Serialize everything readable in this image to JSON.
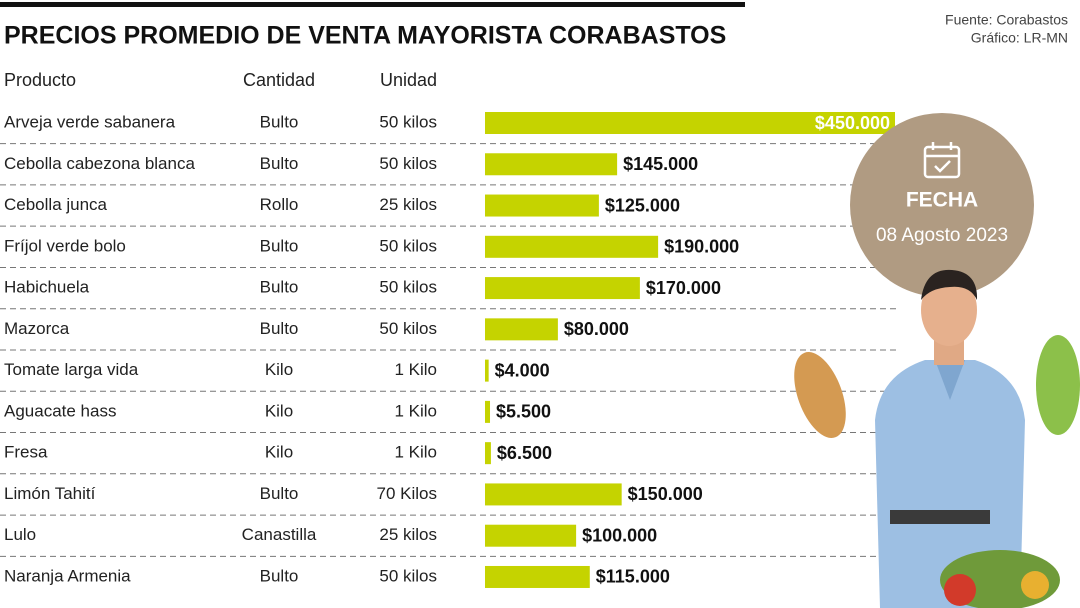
{
  "chart_data": {
    "type": "bar",
    "orientation": "horizontal",
    "title": "PRECIOS PROMEDIO DE VENTA MAYORISTA  CORABASTOS",
    "source": "Fuente: Corabastos",
    "credit": "Gráfico: LR-MN",
    "columns": [
      "Producto",
      "Cantidad",
      "Unidad"
    ],
    "categories": [
      "Arveja verde sabanera",
      "Cebolla cabezona blanca",
      "Cebolla junca",
      "Fríjol verde bolo",
      "Habichuela",
      "Mazorca",
      "Tomate larga vida",
      "Aguacate hass",
      "Fresa",
      "Limón Tahití",
      "Lulo",
      "Naranja Armenia"
    ],
    "cantidad": [
      "Bulto",
      "Bulto",
      "Rollo",
      "Bulto",
      "Bulto",
      "Bulto",
      "Kilo",
      "Kilo",
      "Kilo",
      "Bulto",
      "Canastilla",
      "Bulto"
    ],
    "unidad": [
      "50 kilos",
      "50 kilos",
      "25 kilos",
      "50 kilos",
      "50 kilos",
      "50 kilos",
      "1 Kilo",
      "1 Kilo",
      "1 Kilo",
      "70 Kilos",
      "25 kilos",
      "50 kilos"
    ],
    "values": [
      450000,
      145000,
      125000,
      190000,
      170000,
      80000,
      4000,
      5500,
      6500,
      150000,
      100000,
      115000
    ],
    "value_labels": [
      "$450.000",
      "$145.000",
      "$125.000",
      "$190.000",
      "$170.000",
      "$80.000",
      "$4.000",
      "$5.500",
      "$6.500",
      "$150.000",
      "$100.000",
      "$115.000"
    ],
    "color": "#c5d300",
    "badge": {
      "label": "FECHA",
      "date": "08 Agosto 2023",
      "color": "#b09b82"
    }
  }
}
